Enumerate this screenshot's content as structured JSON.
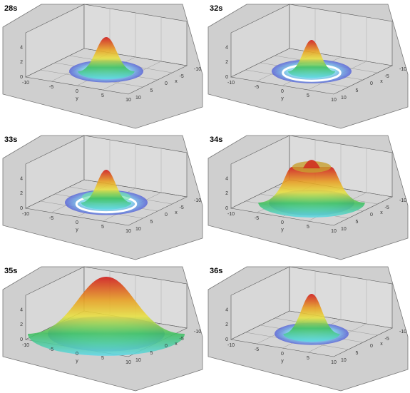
{
  "panels": [
    {
      "label": "28s"
    },
    {
      "label": "32s"
    },
    {
      "label": "33s"
    },
    {
      "label": "34s"
    },
    {
      "label": "35s"
    },
    {
      "label": "36s"
    }
  ],
  "axes": {
    "z_ticks": [
      "0",
      "2",
      "4"
    ],
    "y_ticks": [
      "-10",
      "-5",
      "0",
      "5",
      "10"
    ],
    "x_ticks": [
      "-10",
      "-5",
      "0",
      "5",
      "10"
    ],
    "y_label": "y",
    "x_label": "x"
  }
}
